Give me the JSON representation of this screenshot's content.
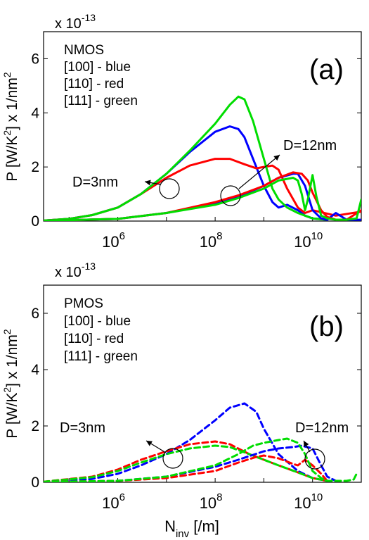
{
  "chart_data": [
    {
      "type": "line",
      "panel_label": "(a)",
      "exponent_label": "x 10",
      "exponent_power": "-13",
      "ylabel_parts": [
        "P [W/K",
        "2",
        "] x 1/nm",
        "2"
      ],
      "xscale": "log",
      "xlim": [
        30000,
        100000000000.0
      ],
      "ylim": [
        0,
        7
      ],
      "yticks": [
        "0",
        "2",
        "4",
        "6"
      ],
      "xticks": [
        {
          "base": "10",
          "exp": "6"
        },
        {
          "base": "10",
          "exp": "8"
        },
        {
          "base": "10",
          "exp": "10"
        }
      ],
      "legend_lines": [
        "NMOS",
        "[100] - blue",
        "[110] - red",
        "[111] - green"
      ],
      "annotations": [
        "D=3nm",
        "D=12nm"
      ],
      "line_style": "solid",
      "series": [
        {
          "diameter": "3nm",
          "color": "#0000ff",
          "x": [
            30000.0,
            100000.0,
            300000.0,
            1000000.0,
            3000000.0,
            10000000.0,
            30000000.0,
            100000000.0,
            200000000.0,
            300000000.0,
            400000000.0,
            600000000.0,
            1000000000.0,
            1500000000.0,
            2000000000.0,
            3000000000.0,
            5000000000.0,
            7000000000.0,
            10000000000.0,
            20000000000.0
          ],
          "y": [
            0.02,
            0.08,
            0.22,
            0.5,
            1.0,
            1.75,
            2.55,
            3.3,
            3.5,
            3.4,
            3.1,
            2.3,
            1.3,
            0.7,
            0.5,
            0.6,
            0.4,
            0.2,
            0.1,
            0.05
          ]
        },
        {
          "diameter": "3nm",
          "color": "#ff0000",
          "x": [
            30000.0,
            100000.0,
            300000.0,
            1000000.0,
            3000000.0,
            10000000.0,
            30000000.0,
            100000000.0,
            200000000.0,
            400000000.0,
            700000000.0,
            1000000000.0,
            1500000000.0,
            2000000000.0,
            3000000000.0,
            5000000000.0,
            7000000000.0,
            10000000000.0,
            30000000000.0,
            100000000000.0
          ],
          "y": [
            0.02,
            0.08,
            0.22,
            0.5,
            1.0,
            1.6,
            2.05,
            2.3,
            2.3,
            2.1,
            1.95,
            2.0,
            2.05,
            1.9,
            1.2,
            0.5,
            0.3,
            0.4,
            0.2,
            0.35
          ]
        },
        {
          "diameter": "3nm",
          "color": "#00dd00",
          "x": [
            30000.0,
            100000.0,
            300000.0,
            1000000.0,
            3000000.0,
            10000000.0,
            30000000.0,
            100000000.0,
            200000000.0,
            300000000.0,
            400000000.0,
            600000000.0,
            1000000000.0,
            1500000000.0,
            2000000000.0,
            3000000000.0,
            5000000000.0,
            7000000000.0,
            10000000000.0,
            20000000000.0
          ],
          "y": [
            0.02,
            0.08,
            0.22,
            0.5,
            1.0,
            1.75,
            2.6,
            3.6,
            4.3,
            4.6,
            4.5,
            3.7,
            2.3,
            1.2,
            0.8,
            0.5,
            0.3,
            0.2,
            0.1,
            0.05
          ]
        },
        {
          "diameter": "12nm",
          "color": "#0000ff",
          "x": [
            30000.0,
            1000000.0,
            10000000.0,
            100000000.0,
            300000000.0,
            1000000000.0,
            2000000000.0,
            4000000000.0,
            5000000000.0,
            7000000000.0,
            10000000000.0,
            15000000000.0,
            20000000000.0,
            30000000000.0,
            50000000000.0,
            100000000000.0
          ],
          "y": [
            0.01,
            0.08,
            0.3,
            0.65,
            0.9,
            1.3,
            1.6,
            1.75,
            1.75,
            1.3,
            0.4,
            0.1,
            0.05,
            0.3,
            0.05,
            0.05
          ]
        },
        {
          "diameter": "12nm",
          "color": "#ff0000",
          "x": [
            30000.0,
            1000000.0,
            10000000.0,
            100000000.0,
            300000000.0,
            1000000000.0,
            2000000000.0,
            4000000000.0,
            6000000000.0,
            8000000000.0,
            10000000000.0,
            15000000000.0,
            20000000000.0,
            30000000000.0,
            50000000000.0,
            100000000000.0
          ],
          "y": [
            0.01,
            0.08,
            0.3,
            0.7,
            0.95,
            1.3,
            1.6,
            1.8,
            1.75,
            1.5,
            1.05,
            0.4,
            0.15,
            0.05,
            0.05,
            0.4
          ]
        },
        {
          "diameter": "12nm",
          "color": "#00dd00",
          "x": [
            30000.0,
            1000000.0,
            10000000.0,
            100000000.0,
            300000000.0,
            1000000000.0,
            2000000000.0,
            4000000000.0,
            5000000000.0,
            6000000000.0,
            7000000000.0,
            8000000000.0,
            10000000000.0,
            12000000000.0,
            15000000000.0,
            20000000000.0,
            30000000000.0,
            50000000000.0,
            80000000000.0,
            100000000000.0
          ],
          "y": [
            0.01,
            0.08,
            0.3,
            0.6,
            0.85,
            1.2,
            1.5,
            1.6,
            1.5,
            1.0,
            0.4,
            0.8,
            1.7,
            0.9,
            0.2,
            0.1,
            0.05,
            0.05,
            0.1,
            0.8
          ]
        }
      ]
    },
    {
      "type": "line",
      "panel_label": "(b)",
      "exponent_label": "x 10",
      "exponent_power": "-13",
      "ylabel_parts": [
        "P [W/K",
        "2",
        "] x 1/nm",
        "2"
      ],
      "xlabel_main": "N",
      "xlabel_sub": "inv",
      "xlabel_unit": " [/m]",
      "xscale": "log",
      "xlim": [
        30000,
        100000000000.0
      ],
      "ylim": [
        0,
        7
      ],
      "yticks": [
        "0",
        "2",
        "4",
        "6"
      ],
      "xticks": [
        {
          "base": "10",
          "exp": "6"
        },
        {
          "base": "10",
          "exp": "8"
        },
        {
          "base": "10",
          "exp": "10"
        }
      ],
      "legend_lines": [
        "PMOS",
        "[100] - blue",
        "[110] - red",
        "[111] - green"
      ],
      "annotations": [
        "D=3nm",
        "D=12nm"
      ],
      "line_style": "dashed",
      "series": [
        {
          "diameter": "3nm",
          "color": "#0000ff",
          "x": [
            30000.0,
            300000.0,
            1000000.0,
            3000000.0,
            10000000.0,
            30000000.0,
            100000000.0,
            200000000.0,
            400000000.0,
            700000000.0,
            1000000000.0,
            2000000000.0,
            5000000000.0,
            10000000000.0,
            20000000000.0
          ],
          "y": [
            0.01,
            0.12,
            0.3,
            0.6,
            1.0,
            1.5,
            2.2,
            2.65,
            2.8,
            2.5,
            1.9,
            1.0,
            0.4,
            0.15,
            0.05
          ]
        },
        {
          "diameter": "3nm",
          "color": "#ff0000",
          "x": [
            30000.0,
            300000.0,
            1000000.0,
            3000000.0,
            10000000.0,
            30000000.0,
            100000000.0,
            200000000.0,
            500000000.0,
            1000000000.0,
            2000000000.0,
            5000000000.0,
            10000000000.0,
            20000000000.0
          ],
          "y": [
            0.02,
            0.2,
            0.45,
            0.8,
            1.1,
            1.35,
            1.45,
            1.35,
            1.0,
            0.8,
            0.6,
            0.35,
            0.15,
            0.05
          ]
        },
        {
          "diameter": "3nm",
          "color": "#00dd00",
          "x": [
            30000.0,
            300000.0,
            1000000.0,
            3000000.0,
            10000000.0,
            30000000.0,
            100000000.0,
            200000000.0,
            500000000.0,
            1000000000.0,
            2000000000.0,
            5000000000.0,
            10000000000.0,
            20000000000.0
          ],
          "y": [
            0.02,
            0.18,
            0.4,
            0.7,
            1.0,
            1.2,
            1.3,
            1.25,
            1.0,
            0.8,
            0.6,
            0.35,
            0.15,
            0.05
          ]
        },
        {
          "diameter": "12nm",
          "color": "#0000ff",
          "x": [
            30000.0,
            1000000.0,
            10000000.0,
            100000000.0,
            300000000.0,
            1000000000.0,
            2000000000.0,
            4000000000.0,
            6000000000.0,
            10000000000.0,
            15000000000.0,
            20000000000.0,
            30000000000.0
          ],
          "y": [
            0.01,
            0.05,
            0.2,
            0.55,
            0.8,
            1.1,
            1.2,
            1.25,
            1.3,
            1.2,
            0.6,
            0.2,
            0.05
          ]
        },
        {
          "diameter": "12nm",
          "color": "#ff0000",
          "x": [
            30000.0,
            1000000.0,
            10000000.0,
            100000000.0,
            300000000.0,
            700000000.0,
            1000000000.0,
            2000000000.0,
            4000000000.0,
            5000000000.0,
            7000000000.0,
            10000000000.0,
            15000000000.0,
            20000000000.0
          ],
          "y": [
            0.01,
            0.05,
            0.15,
            0.4,
            0.7,
            0.9,
            0.95,
            0.85,
            0.65,
            0.6,
            0.8,
            0.6,
            0.3,
            0.05
          ]
        },
        {
          "diameter": "12nm",
          "color": "#00dd00",
          "x": [
            30000.0,
            1000000.0,
            10000000.0,
            100000000.0,
            300000000.0,
            600000000.0,
            1000000000.0,
            2000000000.0,
            3000000000.0,
            5000000000.0,
            7000000000.0,
            10000000000.0,
            15000000000.0,
            20000000000.0,
            30000000000.0,
            50000000000.0,
            70000000000.0,
            80000000000.0
          ],
          "y": [
            0.01,
            0.05,
            0.2,
            0.6,
            1.0,
            1.3,
            1.4,
            1.5,
            1.55,
            1.4,
            1.0,
            0.4,
            0.15,
            0.05,
            0.05,
            0.05,
            0.1,
            0.3
          ]
        }
      ]
    }
  ]
}
